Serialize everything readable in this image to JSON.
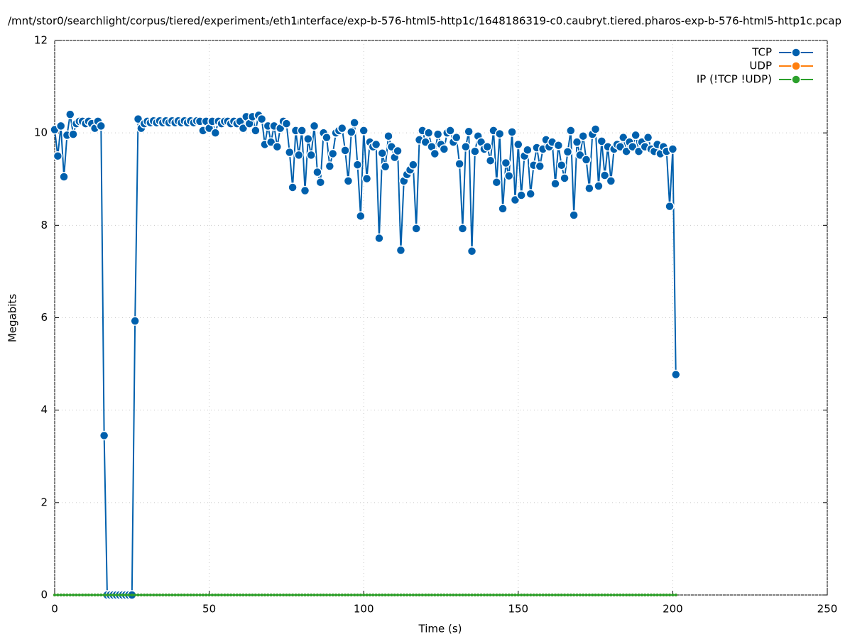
{
  "chart_data": {
    "type": "line",
    "title": "/mnt/stor0/searchlight/corpus/tiered/experiment₃/eth1ᵢnterface/exp-b-576-html5-http1c/1648186319-c0.caubryt.tiered.pharos-exp-b-576-html5-http1c.pcap",
    "x_label": "Time (s)",
    "y_label": "Megabits",
    "xlim": [
      0,
      250
    ],
    "xticks": [
      0,
      50,
      100,
      150,
      200,
      250
    ],
    "ylim": [
      0,
      12
    ],
    "yticks": [
      0,
      2,
      4,
      6,
      8,
      10,
      12
    ],
    "grid": true,
    "legend": "top-right",
    "x": [
      0,
      1,
      2,
      3,
      4,
      5,
      6,
      7,
      8,
      9,
      10,
      11,
      12,
      13,
      14,
      15,
      16,
      17,
      18,
      19,
      20,
      21,
      22,
      23,
      24,
      25,
      26,
      27,
      28,
      29,
      30,
      31,
      32,
      33,
      34,
      35,
      36,
      37,
      38,
      39,
      40,
      41,
      42,
      43,
      44,
      45,
      46,
      47,
      48,
      49,
      50,
      51,
      52,
      53,
      54,
      55,
      56,
      57,
      58,
      59,
      60,
      61,
      62,
      63,
      64,
      65,
      66,
      67,
      68,
      69,
      70,
      71,
      72,
      73,
      74,
      75,
      76,
      77,
      78,
      79,
      80,
      81,
      82,
      83,
      84,
      85,
      86,
      87,
      88,
      89,
      90,
      91,
      92,
      93,
      94,
      95,
      96,
      97,
      98,
      99,
      100,
      101,
      102,
      103,
      104,
      105,
      106,
      107,
      108,
      109,
      110,
      111,
      112,
      113,
      114,
      115,
      116,
      117,
      118,
      119,
      120,
      121,
      122,
      123,
      124,
      125,
      126,
      127,
      128,
      129,
      130,
      131,
      132,
      133,
      134,
      135,
      136,
      137,
      138,
      139,
      140,
      141,
      142,
      143,
      144,
      145,
      146,
      147,
      148,
      149,
      150,
      151,
      152,
      153,
      154,
      155,
      156,
      157,
      158,
      159,
      160,
      161,
      162,
      163,
      164,
      165,
      166,
      167,
      168,
      169,
      170,
      171,
      172,
      173,
      174,
      175,
      176,
      177,
      178,
      179,
      180,
      181,
      182,
      183,
      184,
      185,
      186,
      187,
      188,
      189,
      190,
      191,
      192,
      193,
      194,
      195,
      196,
      197,
      198,
      199,
      200,
      201
    ],
    "series": [
      {
        "name": "TCP",
        "color": "#0060ad",
        "values": [
          10.07,
          9.5,
          10.15,
          9.05,
          9.95,
          10.4,
          9.97,
          10.2,
          10.25,
          10.25,
          10.2,
          10.25,
          10.2,
          10.1,
          10.25,
          10.15,
          3.45,
          0,
          0,
          0,
          0,
          0,
          0,
          0,
          0,
          0,
          5.93,
          10.3,
          10.1,
          10.2,
          10.25,
          10.22,
          10.26,
          10.22,
          10.26,
          10.22,
          10.26,
          10.22,
          10.26,
          10.22,
          10.26,
          10.22,
          10.26,
          10.22,
          10.26,
          10.22,
          10.26,
          10.25,
          10.05,
          10.25,
          10.1,
          10.25,
          10.0,
          10.25,
          10.2,
          10.25,
          10.25,
          10.2,
          10.25,
          10.2,
          10.25,
          10.1,
          10.35,
          10.2,
          10.35,
          10.05,
          10.38,
          10.3,
          9.75,
          10.15,
          9.8,
          10.15,
          9.7,
          10.1,
          10.25,
          10.2,
          9.58,
          8.82,
          10.05,
          9.52,
          10.05,
          8.75,
          9.87,
          9.52,
          10.15,
          9.15,
          8.93,
          10.0,
          9.9,
          9.28,
          9.55,
          10.0,
          10.05,
          10.1,
          9.62,
          8.96,
          10.02,
          10.22,
          9.31,
          8.2,
          10.05,
          9.01,
          9.8,
          9.7,
          9.75,
          7.72,
          9.56,
          9.27,
          9.93,
          9.7,
          9.47,
          9.61,
          7.46,
          8.96,
          9.1,
          9.2,
          9.31,
          7.93,
          9.85,
          10.05,
          9.8,
          10.0,
          9.7,
          9.55,
          9.97,
          9.75,
          9.65,
          10.0,
          10.05,
          9.8,
          9.9,
          9.33,
          7.93,
          9.7,
          10.03,
          7.44,
          9.6,
          9.93,
          9.8,
          9.65,
          9.7,
          9.4,
          10.05,
          8.93,
          9.98,
          8.36,
          9.35,
          9.07,
          10.02,
          8.55,
          9.75,
          8.65,
          9.5,
          9.63,
          8.68,
          9.3,
          9.68,
          9.28,
          9.65,
          9.85,
          9.7,
          9.8,
          8.9,
          9.73,
          9.3,
          9.02,
          9.59,
          10.05,
          8.22,
          9.8,
          9.52,
          9.93,
          9.42,
          8.8,
          9.97,
          10.08,
          8.85,
          9.82,
          9.08,
          9.7,
          8.96,
          9.65,
          9.75,
          9.7,
          9.9,
          9.6,
          9.8,
          9.7,
          9.95,
          9.6,
          9.8,
          9.7,
          9.9,
          9.65,
          9.6,
          9.75,
          9.55,
          9.7,
          9.6,
          8.41,
          9.65,
          4.77
        ]
      },
      {
        "name": "UDP",
        "color": "#ff7f0e",
        "values": [
          0,
          0,
          0,
          0,
          0,
          0,
          0,
          0,
          0,
          0,
          0,
          0,
          0,
          0,
          0,
          0,
          0,
          0,
          0,
          0,
          0,
          0,
          0,
          0,
          0,
          0,
          0,
          0,
          0,
          0,
          0,
          0,
          0,
          0,
          0,
          0,
          0,
          0,
          0,
          0,
          0,
          0,
          0,
          0,
          0,
          0,
          0,
          0,
          0,
          0,
          0,
          0,
          0,
          0,
          0,
          0,
          0,
          0,
          0,
          0,
          0,
          0,
          0,
          0,
          0,
          0,
          0,
          0,
          0,
          0,
          0,
          0,
          0,
          0,
          0,
          0,
          0,
          0,
          0,
          0,
          0,
          0,
          0,
          0,
          0,
          0,
          0,
          0,
          0,
          0,
          0,
          0,
          0,
          0,
          0,
          0,
          0,
          0,
          0,
          0,
          0,
          0,
          0,
          0,
          0,
          0,
          0,
          0,
          0,
          0,
          0,
          0,
          0,
          0,
          0,
          0,
          0,
          0,
          0,
          0,
          0,
          0,
          0,
          0,
          0,
          0,
          0,
          0,
          0,
          0,
          0,
          0,
          0,
          0,
          0,
          0,
          0,
          0,
          0,
          0,
          0,
          0,
          0,
          0,
          0,
          0,
          0,
          0,
          0,
          0,
          0,
          0,
          0,
          0,
          0,
          0,
          0,
          0,
          0,
          0,
          0,
          0,
          0,
          0,
          0,
          0,
          0,
          0,
          0,
          0,
          0,
          0,
          0,
          0,
          0,
          0,
          0,
          0,
          0,
          0,
          0,
          0,
          0,
          0,
          0,
          0,
          0,
          0,
          0,
          0,
          0,
          0,
          0,
          0,
          0,
          0,
          0,
          0,
          0,
          0,
          0,
          0
        ]
      },
      {
        "name": "IP (!TCP  !UDP)",
        "color": "#2ca02c",
        "values": [
          0,
          0,
          0,
          0,
          0,
          0,
          0,
          0,
          0,
          0,
          0,
          0,
          0,
          0,
          0,
          0,
          0,
          0,
          0,
          0,
          0,
          0,
          0,
          0,
          0,
          0,
          0,
          0,
          0,
          0,
          0,
          0,
          0,
          0,
          0,
          0,
          0,
          0,
          0,
          0,
          0,
          0,
          0,
          0,
          0,
          0,
          0,
          0,
          0,
          0,
          0,
          0,
          0,
          0,
          0,
          0,
          0,
          0,
          0,
          0,
          0,
          0,
          0,
          0,
          0,
          0,
          0,
          0,
          0,
          0,
          0,
          0,
          0,
          0,
          0,
          0,
          0,
          0,
          0,
          0,
          0,
          0,
          0,
          0,
          0,
          0,
          0,
          0,
          0,
          0,
          0,
          0,
          0,
          0,
          0,
          0,
          0,
          0,
          0,
          0,
          0,
          0,
          0,
          0,
          0,
          0,
          0,
          0,
          0,
          0,
          0,
          0,
          0,
          0,
          0,
          0,
          0,
          0,
          0,
          0,
          0,
          0,
          0,
          0,
          0,
          0,
          0,
          0,
          0,
          0,
          0,
          0,
          0,
          0,
          0,
          0,
          0,
          0,
          0,
          0,
          0,
          0,
          0,
          0,
          0,
          0,
          0,
          0,
          0,
          0,
          0,
          0,
          0,
          0,
          0,
          0,
          0,
          0,
          0,
          0,
          0,
          0,
          0,
          0,
          0,
          0,
          0,
          0,
          0,
          0,
          0,
          0,
          0,
          0,
          0,
          0,
          0,
          0,
          0,
          0,
          0,
          0,
          0,
          0,
          0,
          0,
          0,
          0,
          0,
          0,
          0,
          0,
          0,
          0,
          0,
          0,
          0,
          0,
          0,
          0,
          0,
          0
        ]
      }
    ]
  }
}
